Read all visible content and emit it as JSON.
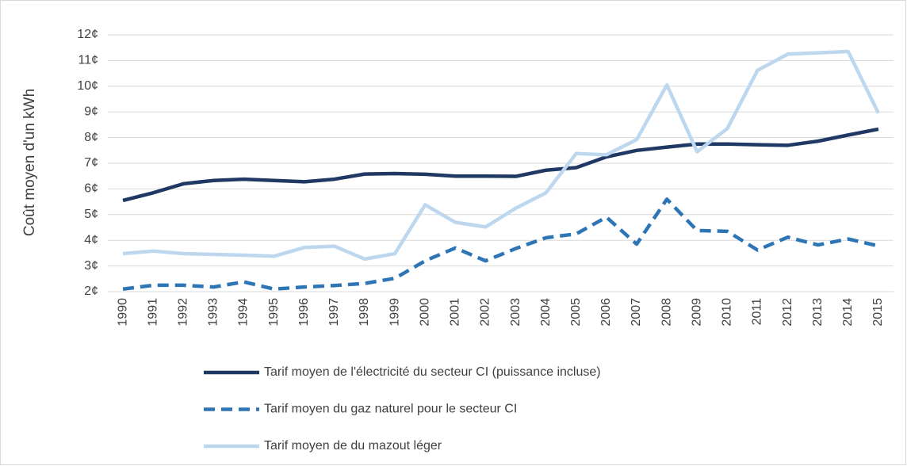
{
  "chart_data": {
    "type": "line",
    "ylabel": "Coût moyen d'un kWh",
    "categories": [
      "1990",
      "1991",
      "1992",
      "1993",
      "1994",
      "1995",
      "1996",
      "1997",
      "1998",
      "1999",
      "2000",
      "2001",
      "2002",
      "2003",
      "2004",
      "2005",
      "2006",
      "2007",
      "2008",
      "2009",
      "2010",
      "2011",
      "2012",
      "2013",
      "2014",
      "2015"
    ],
    "series": [
      {
        "name": "Tarif moyen de l'électricité du secteur CI (puissance incluse)",
        "color": "#203864",
        "dashed": false,
        "values": [
          5.55,
          5.85,
          6.2,
          6.33,
          6.38,
          6.33,
          6.28,
          6.38,
          6.58,
          6.6,
          6.57,
          6.5,
          6.5,
          6.49,
          6.73,
          6.83,
          7.25,
          7.5,
          7.63,
          7.75,
          7.75,
          7.72,
          7.7,
          7.86,
          8.1,
          8.33
        ]
      },
      {
        "name": "Tarif moyen du gaz naturel pour le secteur CI",
        "color": "#2e75b6",
        "dashed": true,
        "values": [
          2.1,
          2.25,
          2.25,
          2.18,
          2.38,
          2.1,
          2.18,
          2.24,
          2.32,
          2.52,
          3.2,
          3.7,
          3.2,
          3.68,
          4.1,
          4.25,
          4.9,
          3.85,
          5.6,
          4.38,
          4.35,
          3.62,
          4.12,
          3.82,
          4.05,
          3.78
        ]
      },
      {
        "name": "Tarif moyen de du mazout léger",
        "color": "#bdd7ee",
        "dashed": false,
        "values": [
          3.48,
          3.58,
          3.48,
          3.45,
          3.42,
          3.38,
          3.72,
          3.77,
          3.27,
          3.48,
          5.38,
          4.7,
          4.52,
          5.25,
          5.85,
          7.38,
          7.33,
          7.92,
          10.05,
          7.45,
          8.35,
          10.62,
          11.25,
          11.3,
          11.35,
          8.95
        ]
      }
    ],
    "ylim": [
      2,
      12
    ],
    "yticks": [
      {
        "value": 2,
        "label": "2¢"
      },
      {
        "value": 3,
        "label": "3¢"
      },
      {
        "value": 4,
        "label": "4¢"
      },
      {
        "value": 5,
        "label": "5¢"
      },
      {
        "value": 6,
        "label": "6¢"
      },
      {
        "value": 7,
        "label": "7¢"
      },
      {
        "value": 8,
        "label": "8¢"
      },
      {
        "value": 9,
        "label": "9¢"
      },
      {
        "value": 10,
        "label": "10¢"
      },
      {
        "value": 11,
        "label": "11¢"
      },
      {
        "value": 12,
        "label": "12¢"
      }
    ],
    "grid": true,
    "legend": "bottom"
  }
}
